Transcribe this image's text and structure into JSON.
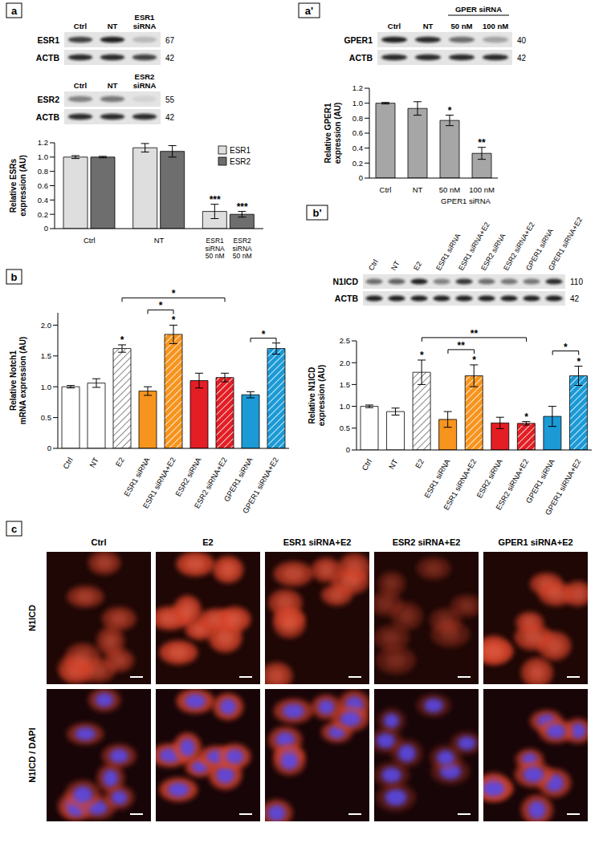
{
  "chart_data": [
    {
      "panel": "a",
      "type": "bar",
      "categories": [
        "Ctrl",
        "NT",
        null
      ],
      "annotations": [
        "ESR1 siRNA 50 nM",
        "ESR2 siRNA 50 nM"
      ],
      "series": [
        {
          "name": "ESR1",
          "color": "#dedede",
          "values": [
            1,
            1.13,
            0.24
          ],
          "errors": [
            0.02,
            0.06,
            0.1
          ],
          "significance": [
            null,
            null,
            "***"
          ]
        },
        {
          "name": "ESR2",
          "color": "#6e6e6e",
          "values": [
            1,
            1.08,
            0.2
          ],
          "errors": [
            0.01,
            0.08,
            0.04
          ],
          "significance": [
            null,
            null,
            "***"
          ]
        }
      ],
      "y_label": "Relative ESRs expression (AU)",
      "ylim": [
        0,
        1.2
      ],
      "yticks": [
        0,
        0.2,
        0.4,
        0.6,
        0.8,
        {
          "value": 1,
          "label": "1.0"
        },
        1.2
      ],
      "legend": "upper right"
    },
    {
      "panel": "a'",
      "type": "bar",
      "categories": [
        "Ctrl",
        "NT",
        "50 nM",
        "100 nM"
      ],
      "annotations": [
        {
          "text": "GPER1 siRNA",
          "categories": [
            "50 nM",
            "100 nM"
          ]
        }
      ],
      "series": [
        {
          "color": "#a6a6a6",
          "values": [
            1,
            0.93,
            0.77,
            0.33
          ],
          "errors": [
            0.01,
            0.09,
            0.07,
            0.08
          ],
          "significance": [
            null,
            null,
            "*",
            "**"
          ]
        }
      ],
      "y_label": "Relative GPER1 expression (AU)",
      "ylim": [
        0,
        1.2
      ],
      "yticks": [
        0,
        0.2,
        0.4,
        0.6,
        0.8,
        {
          "value": 1,
          "label": "1.0"
        },
        1.2
      ]
    },
    {
      "panel": "b",
      "type": "bar",
      "categories": [
        "Ctrl",
        "NT",
        "E2",
        "ESR1 siRNA",
        "ESR1 siRNA+E2",
        "ESR2 siRNA",
        "ESR2 siRNA+E2",
        "GPER1 siRNA",
        "GPER1 siRNA+E2"
      ],
      "series": [
        {
          "colors": [
            "#ffffff",
            "#ffffff",
            "#ffffff",
            "#f7941d",
            "#f7941d",
            "#e31e24",
            "#e31e24",
            "#1b9ad6",
            "#1b9ad6"
          ],
          "values": [
            1,
            1.06,
            1.62,
            0.93,
            1.85,
            1.1,
            1.15,
            0.87,
            1.62
          ],
          "errors": [
            0.02,
            0.07,
            0.06,
            0.07,
            0.15,
            0.12,
            0.07,
            0.05,
            0.09
          ],
          "significance": [
            null,
            null,
            "*",
            null,
            "*",
            null,
            null,
            null,
            null
          ]
        }
      ],
      "brackets": [
        {
          "from": "E2",
          "to": "ESR2 siRNA+E2",
          "label": "*"
        },
        {
          "from": "ESR1 siRNA",
          "to": "ESR1 siRNA+E2",
          "label": "*"
        },
        {
          "from": "GPER1 siRNA",
          "to": "GPER1 siRNA+E2",
          "label": "*"
        }
      ],
      "y_label": "Relative Notch1 mRNA expression (AU)",
      "ylim": [
        0,
        2.2
      ],
      "yticks": [
        0,
        0.5,
        {
          "value": 1,
          "label": "1.0"
        },
        1.5,
        {
          "value": 2,
          "label": "2.0"
        }
      ]
    },
    {
      "panel": "b'",
      "type": "bar",
      "categories": [
        "Ctrl",
        "NT",
        "E2",
        "ESR1 siRNA",
        "ESR1 siRNA+E2",
        "ESR2 siRNA",
        "ESR2 siRNA+E2",
        "GPER1 siRNA",
        "GPER1 siRNA+E2"
      ],
      "series": [
        {
          "colors": [
            "#ffffff",
            "#ffffff",
            "#ffffff",
            "#f7941d",
            "#f7941d",
            "#e31e24",
            "#e31e24",
            "#1b9ad6",
            "#1b9ad6"
          ],
          "values": [
            1,
            0.88,
            1.78,
            0.7,
            1.7,
            0.62,
            0.61,
            0.77,
            1.7
          ],
          "errors": [
            0.03,
            0.08,
            0.28,
            0.18,
            0.25,
            0.13,
            0.04,
            0.23,
            0.22
          ],
          "significance": [
            null,
            null,
            "*",
            null,
            "*",
            null,
            "*",
            null,
            "*"
          ]
        }
      ],
      "brackets": [
        {
          "from": "E2",
          "to": "ESR2 siRNA+E2",
          "label": "**"
        },
        {
          "from": "ESR1 siRNA",
          "to": "ESR1 siRNA+E2",
          "label": "**"
        },
        {
          "from": "GPER1 siRNA",
          "to": "GPER1 siRNA+E2",
          "label": "*"
        }
      ],
      "y_label": "Relative N1ICD expression (AU)",
      "ylim": [
        0,
        2.5
      ],
      "yticks": [
        0,
        0.5,
        {
          "value": 1,
          "label": "1.0"
        },
        1.5,
        {
          "value": 2,
          "label": "2.0"
        },
        2.5
      ]
    }
  ],
  "blots": [
    {
      "panel": "a",
      "lanes": [
        "Ctrl",
        "NT",
        "ESR1 siRNA"
      ],
      "rows": [
        {
          "label": "ESR1",
          "mw": 67,
          "bands": [
            0.75,
            0.9,
            0.2
          ]
        },
        {
          "label": "ACTB",
          "mw": 42,
          "bands": [
            0.85,
            0.85,
            0.75
          ]
        }
      ]
    },
    {
      "panel": "a",
      "lanes": [
        "Ctrl",
        "NT",
        "ESR2 siRNA"
      ],
      "rows": [
        {
          "label": "ESR2",
          "mw": 55,
          "bands": [
            0.45,
            0.5,
            0.08
          ]
        },
        {
          "label": "ACTB",
          "mw": 42,
          "bands": [
            0.85,
            0.85,
            0.85
          ]
        }
      ]
    },
    {
      "panel": "a'",
      "lanes": [
        "Ctrl",
        "NT",
        "50 nM",
        "100 nM"
      ],
      "lane_group": {
        "label": "GPER siRNA",
        "lanes": [
          "50 nM",
          "100 nM"
        ]
      },
      "rows": [
        {
          "label": "GPER1",
          "mw": 40,
          "bands": [
            0.9,
            0.85,
            0.55,
            0.3
          ]
        },
        {
          "label": "ACTB",
          "mw": 42,
          "bands": [
            0.85,
            0.85,
            0.85,
            0.85
          ]
        }
      ]
    },
    {
      "panel": "b'",
      "lanes": [
        "Ctrl",
        "NT",
        "E2",
        "ESR1 siRNA",
        "ESR1 siRNA+E2",
        "ESR2 siRNA",
        "ESR2 siRNA+E2",
        "GPER1 siRNA",
        "GPER1 siRNA+E2"
      ],
      "rows": [
        {
          "label": "N1ICD",
          "mw": 110,
          "bands": [
            0.55,
            0.6,
            0.9,
            0.45,
            0.8,
            0.55,
            0.5,
            0.5,
            0.85
          ]
        },
        {
          "label": "ACTB",
          "mw": 42,
          "bands": [
            0.9,
            0.9,
            0.9,
            0.9,
            0.9,
            0.9,
            0.9,
            0.9,
            0.9
          ]
        }
      ]
    }
  ],
  "micrographs": {
    "panel": "c",
    "columns": [
      "Ctrl",
      "E2",
      "ESR1 siRNA+E2",
      "ESR2 siRNA+E2",
      "GPER1 siRNA+E2"
    ],
    "rows": [
      "N1ICD",
      "N1ICD / DAPI"
    ],
    "signal": [
      0.45,
      0.85,
      0.65,
      0.15,
      0.7
    ]
  }
}
